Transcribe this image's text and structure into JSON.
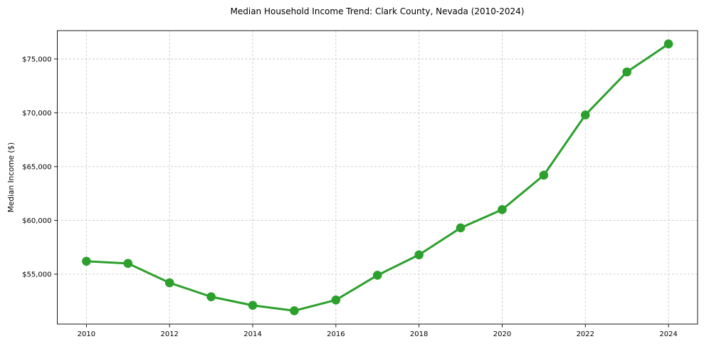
{
  "chart_data": {
    "type": "line",
    "title": "Median Household Income Trend: Clark County, Nevada (2010-2024)",
    "xlabel": "",
    "ylabel": "Median Income ($)",
    "x": [
      2010,
      2011,
      2012,
      2013,
      2014,
      2015,
      2016,
      2017,
      2018,
      2019,
      2020,
      2021,
      2022,
      2023,
      2024
    ],
    "values": [
      56200,
      56000,
      54200,
      52900,
      52100,
      51600,
      52600,
      54900,
      56800,
      59300,
      61000,
      64200,
      69800,
      73800,
      76400
    ],
    "xticks": [
      2010,
      2012,
      2014,
      2016,
      2018,
      2020,
      2022,
      2024
    ],
    "xtick_labels": [
      "2010",
      "2012",
      "2014",
      "2016",
      "2018",
      "2020",
      "2022",
      "2024"
    ],
    "yticks": [
      55000,
      60000,
      65000,
      70000,
      75000
    ],
    "ytick_labels": [
      "$55,000",
      "$60,000",
      "$65,000",
      "$70,000",
      "$75,000"
    ],
    "xlim": [
      2009.3,
      2024.7
    ],
    "ylim": [
      50360,
      77640
    ],
    "grid": true,
    "legend": "none",
    "line_color": "#2ca02c",
    "marker": "circle"
  }
}
